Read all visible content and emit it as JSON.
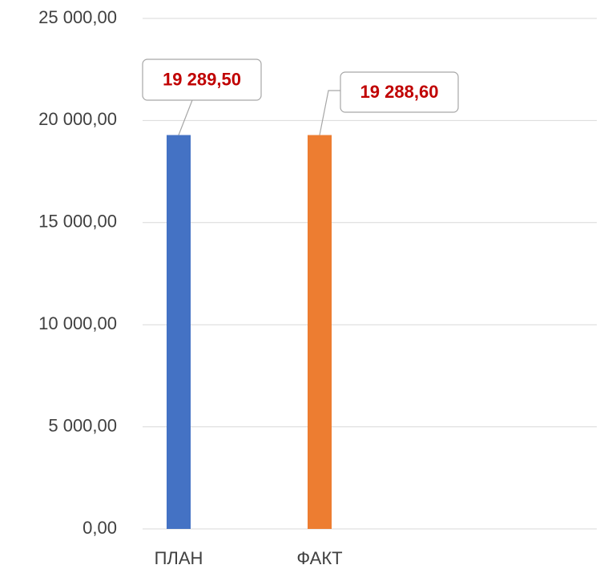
{
  "chart_data": {
    "type": "bar",
    "categories": [
      "ПЛАН",
      "ФАКТ"
    ],
    "values": [
      19289.5,
      19288.6
    ],
    "value_labels": [
      "19 289,50",
      "19 288,60"
    ],
    "colors": [
      "#4472c4",
      "#ed7d31"
    ],
    "ylim": [
      0,
      25000
    ],
    "yticks": [
      {
        "value": 0,
        "label": "0,00"
      },
      {
        "value": 5000,
        "label": "5 000,00"
      },
      {
        "value": 10000,
        "label": "10 000,00"
      },
      {
        "value": 15000,
        "label": "15 000,00"
      },
      {
        "value": 20000,
        "label": "20 000,00"
      },
      {
        "value": 25000,
        "label": "25 000,00"
      }
    ],
    "grid": true
  }
}
